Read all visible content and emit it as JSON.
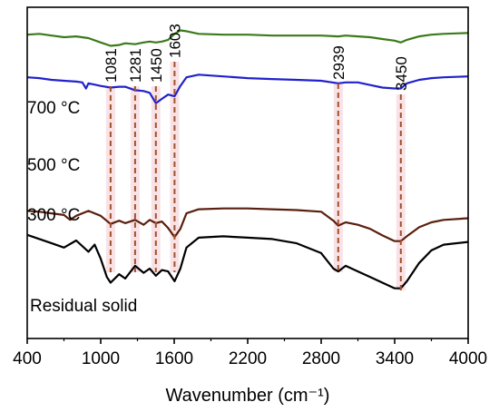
{
  "chart_data": {
    "type": "line",
    "title": "",
    "xlabel": "Wavenumber (cm⁻¹)",
    "ylabel": "",
    "xlim": [
      400,
      4000
    ],
    "x_ticks": [
      400,
      1000,
      1600,
      2200,
      2800,
      3400,
      4000
    ],
    "grid": false,
    "legend": "inline labels",
    "colors": {
      "700 °C": "#3b7a1a",
      "500 °C": "#2222cc",
      "300 °C": "#5a1f0e",
      "Residual solid": "#000000",
      "marker": "#a0522d",
      "marker_band": "#f7d6dc"
    },
    "series": [
      {
        "name": "700 °C",
        "x": [
          400,
          500,
          600,
          700,
          800,
          900,
          1000,
          1081,
          1150,
          1200,
          1281,
          1350,
          1400,
          1450,
          1500,
          1550,
          1603,
          1650,
          1700,
          1800,
          2000,
          2200,
          2400,
          2600,
          2800,
          2939,
          3000,
          3100,
          3200,
          3300,
          3400,
          3450,
          3500,
          3600,
          3700,
          3800,
          4000
        ],
        "y": [
          0.84,
          0.85,
          0.83,
          0.81,
          0.82,
          0.8,
          0.75,
          0.71,
          0.72,
          0.74,
          0.73,
          0.75,
          0.76,
          0.75,
          0.76,
          0.78,
          0.85,
          0.89,
          0.88,
          0.85,
          0.84,
          0.84,
          0.83,
          0.83,
          0.83,
          0.82,
          0.83,
          0.82,
          0.81,
          0.79,
          0.77,
          0.75,
          0.78,
          0.82,
          0.84,
          0.85,
          0.86
        ]
      },
      {
        "name": "500 °C",
        "x": [
          400,
          500,
          600,
          700,
          800,
          850,
          880,
          900,
          1000,
          1081,
          1150,
          1200,
          1281,
          1350,
          1400,
          1450,
          1500,
          1550,
          1603,
          1650,
          1700,
          1800,
          2000,
          2200,
          2400,
          2600,
          2800,
          2939,
          3000,
          3100,
          3200,
          3300,
          3400,
          3450,
          3500,
          3600,
          3700,
          3800,
          4000
        ],
        "y": [
          0.63,
          0.62,
          0.6,
          0.59,
          0.58,
          0.57,
          0.5,
          0.56,
          0.53,
          0.51,
          0.52,
          0.52,
          0.48,
          0.47,
          0.45,
          0.33,
          0.38,
          0.43,
          0.41,
          0.53,
          0.63,
          0.66,
          0.64,
          0.62,
          0.61,
          0.6,
          0.59,
          0.56,
          0.57,
          0.57,
          0.54,
          0.51,
          0.5,
          0.5,
          0.56,
          0.6,
          0.62,
          0.63,
          0.64
        ]
      },
      {
        "name": "300 °C",
        "x": [
          400,
          500,
          600,
          700,
          750,
          800,
          900,
          1000,
          1081,
          1150,
          1200,
          1281,
          1350,
          1400,
          1450,
          1500,
          1550,
          1603,
          1650,
          1700,
          1800,
          2000,
          2200,
          2400,
          2600,
          2800,
          2900,
          2939,
          3000,
          3100,
          3200,
          3300,
          3400,
          3450,
          3500,
          3600,
          3700,
          3800,
          4000
        ],
        "y": [
          0.34,
          0.33,
          0.31,
          0.29,
          0.23,
          0.28,
          0.34,
          0.28,
          0.18,
          0.22,
          0.19,
          0.23,
          0.17,
          0.23,
          0.19,
          0.21,
          0.13,
          0.02,
          0.12,
          0.31,
          0.36,
          0.37,
          0.37,
          0.36,
          0.35,
          0.33,
          0.22,
          0.16,
          0.2,
          0.17,
          0.12,
          0.04,
          -0.03,
          -0.03,
          0.03,
          0.14,
          0.2,
          0.23,
          0.25
        ]
      },
      {
        "name": "Residual solid",
        "x": [
          400,
          500,
          600,
          700,
          800,
          900,
          950,
          1000,
          1050,
          1081,
          1150,
          1200,
          1281,
          1350,
          1400,
          1450,
          1500,
          1550,
          1603,
          1650,
          1700,
          1800,
          2000,
          2200,
          2400,
          2600,
          2800,
          2900,
          2939,
          3000,
          3100,
          3200,
          3300,
          3400,
          3450,
          3500,
          3600,
          3700,
          3800,
          4000
        ],
        "y": [
          0.04,
          0.01,
          -0.02,
          -0.05,
          0.0,
          -0.08,
          -0.03,
          -0.13,
          -0.26,
          -0.3,
          -0.24,
          -0.27,
          -0.18,
          -0.23,
          -0.2,
          -0.25,
          -0.21,
          -0.22,
          -0.29,
          -0.2,
          -0.05,
          0.02,
          0.03,
          0.02,
          0.01,
          -0.02,
          -0.09,
          -0.2,
          -0.22,
          -0.18,
          -0.22,
          -0.26,
          -0.3,
          -0.34,
          -0.34,
          -0.29,
          -0.16,
          -0.07,
          -0.03,
          -0.01
        ]
      }
    ],
    "peak_markers": [
      {
        "label": "1081",
        "x": 1081
      },
      {
        "label": "1281",
        "x": 1281
      },
      {
        "label": "1450",
        "x": 1450
      },
      {
        "label": "1603",
        "x": 1603
      },
      {
        "label": "2939",
        "x": 2939
      },
      {
        "label": "3450",
        "x": 3450
      }
    ]
  }
}
